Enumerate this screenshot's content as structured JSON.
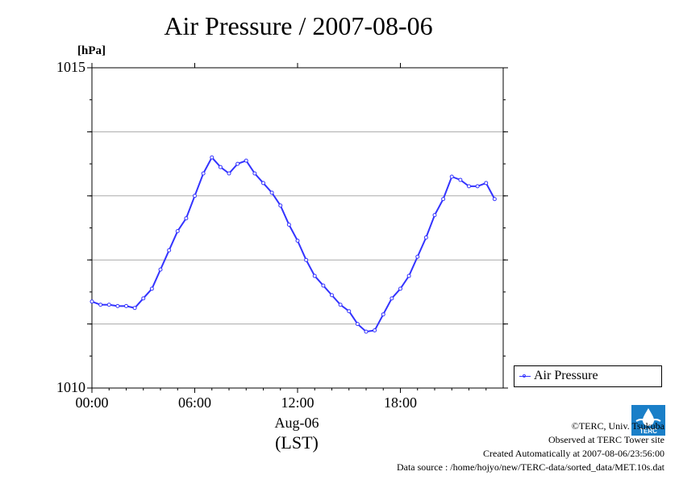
{
  "chart_data": {
    "type": "line",
    "title": "Air Pressure / 2007-08-06",
    "ylabel": "[hPa]",
    "xlabel_date": "Aug-06",
    "xlabel_tz": "(LST)",
    "xlim": [
      0,
      24
    ],
    "ylim": [
      1010,
      1015
    ],
    "yticks": [
      1010,
      1011,
      1012,
      1013,
      1014,
      1015
    ],
    "ytick_labels": [
      "1010",
      "",
      "",
      "",
      "",
      "1015"
    ],
    "xticks": [
      0,
      6,
      12,
      18
    ],
    "xtick_labels": [
      "00:00",
      "06:00",
      "12:00",
      "18:00"
    ],
    "grid": true,
    "legend_position": "right-bottom-outside",
    "series": [
      {
        "name": "Air Pressure",
        "color": "#3333ff",
        "x": [
          0,
          0.5,
          1,
          1.5,
          2,
          2.5,
          3,
          3.5,
          4,
          4.5,
          5,
          5.5,
          6,
          6.5,
          7,
          7.5,
          8,
          8.5,
          9,
          9.5,
          10,
          10.5,
          11,
          11.5,
          12,
          12.5,
          13,
          13.5,
          14,
          14.5,
          15,
          15.5,
          16,
          16.5,
          17,
          17.5,
          18,
          18.5,
          19,
          19.5,
          20,
          20.5,
          21,
          21.5,
          22,
          22.5,
          23,
          23.5
        ],
        "y": [
          1011.35,
          1011.3,
          1011.3,
          1011.28,
          1011.28,
          1011.25,
          1011.4,
          1011.55,
          1011.85,
          1012.15,
          1012.45,
          1012.65,
          1013.0,
          1013.35,
          1013.6,
          1013.45,
          1013.35,
          1013.5,
          1013.55,
          1013.35,
          1013.2,
          1013.05,
          1012.85,
          1012.55,
          1012.3,
          1012.0,
          1011.75,
          1011.6,
          1011.45,
          1011.3,
          1011.2,
          1011.0,
          1010.88,
          1010.9,
          1011.15,
          1011.4,
          1011.55,
          1011.75,
          1012.05,
          1012.35,
          1012.7,
          1012.95,
          1013.3,
          1013.25,
          1013.15,
          1013.15,
          1013.2,
          1012.95
        ]
      }
    ]
  },
  "credits": {
    "copyright": "©TERC, Univ. Tsukuba",
    "observed": "Observed at TERC Tower site",
    "created": "Created Automatically at 2007-08-06/23:56:00",
    "source": "Data source : /home/hojyo/new/TERC-data/sorted_data/MET.10s.dat",
    "logo_text": "TERC"
  }
}
